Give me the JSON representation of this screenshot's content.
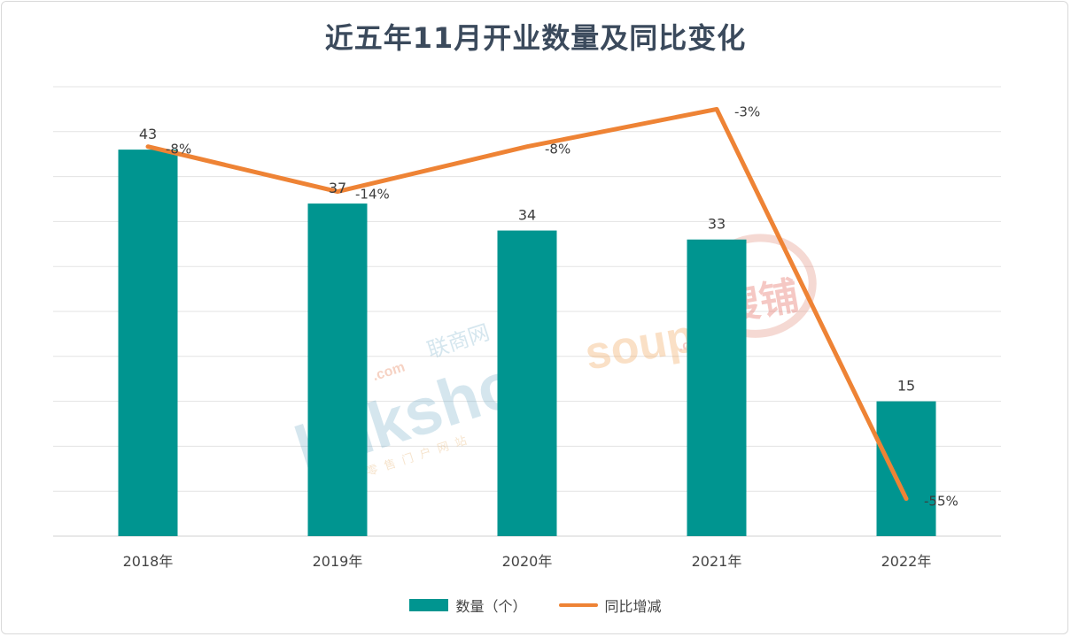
{
  "chart_data": {
    "type": "bar",
    "title": "近五年11月开业数量及同比变化",
    "categories": [
      "2018年",
      "2019年",
      "2020年",
      "2021年",
      "2022年"
    ],
    "series": [
      {
        "name": "数量（个）",
        "type": "bar",
        "values": [
          43,
          37,
          34,
          33,
          15
        ],
        "data_labels": [
          "43",
          "37",
          "34",
          "33",
          "15"
        ],
        "color": "#009590",
        "axis": "left"
      },
      {
        "name": "同比增减",
        "type": "line",
        "values": [
          -8,
          -14,
          -8,
          -3,
          -55
        ],
        "data_labels": [
          "-8%",
          "-14%",
          "-8%",
          "-3%",
          "-55%"
        ],
        "color": "#ee8335",
        "axis": "right"
      }
    ],
    "left_ylim": [
      0,
      50
    ],
    "right_ylim": [
      -60,
      0
    ],
    "grid": true,
    "legend_position": "bottom-center"
  },
  "watermarks": {
    "linkshop": {
      "mark": "linkshop",
      "cn": "联商网",
      "sub": "中国零售门户网站",
      "dotcom": ".com"
    },
    "soupu": {
      "mark": "soupu",
      "cn": "搜铺",
      "dotcom": ".com"
    }
  }
}
